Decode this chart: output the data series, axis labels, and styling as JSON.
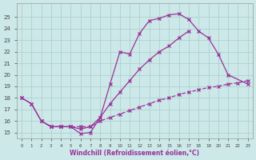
{
  "bg_color": "#cce8e8",
  "grid_color": "#aacccc",
  "line_color": "#993399",
  "xlabel": "Windchill (Refroidissement éolien,°C)",
  "curve1_x": [
    0,
    1,
    2,
    3,
    4,
    5,
    6,
    7,
    8,
    9,
    10,
    11,
    12,
    13,
    14,
    15,
    16,
    17,
    18,
    19,
    20,
    21,
    23
  ],
  "curve1_y": [
    18.0,
    17.5,
    16.0,
    15.5,
    15.5,
    15.5,
    14.9,
    15.0,
    16.3,
    19.2,
    22.0,
    21.8,
    23.6,
    24.7,
    24.9,
    25.2,
    25.3,
    24.8,
    23.8,
    23.2,
    21.8,
    20.0,
    19.2
  ],
  "curve2_x": [
    0,
    1,
    2,
    3,
    4,
    5,
    6,
    7,
    8,
    9,
    10,
    11,
    12,
    13,
    14,
    15,
    16,
    17,
    18,
    19,
    20,
    21,
    23
  ],
  "curve2_y": [
    18.0,
    17.5,
    16.0,
    15.5,
    15.5,
    15.5,
    15.3,
    15.5,
    16.3,
    17.5,
    18.5,
    19.5,
    20.5,
    21.3,
    22.0,
    22.5,
    23.2,
    23.8,
    null,
    null,
    null,
    null,
    null
  ],
  "curve3_x": [
    2,
    3,
    4,
    5,
    6,
    7,
    8,
    9,
    10,
    11,
    12,
    13,
    14,
    15,
    16,
    17,
    18,
    19,
    20,
    21,
    22,
    23
  ],
  "curve3_y": [
    16.0,
    15.5,
    15.5,
    15.5,
    15.5,
    15.5,
    16.0,
    16.3,
    16.6,
    16.9,
    17.2,
    17.5,
    17.8,
    18.0,
    18.3,
    18.5,
    18.7,
    18.9,
    19.0,
    19.2,
    19.3,
    19.5
  ],
  "ylim_min": 14.5,
  "ylim_max": 26.2,
  "xlim_min": -0.5,
  "xlim_max": 23.5
}
